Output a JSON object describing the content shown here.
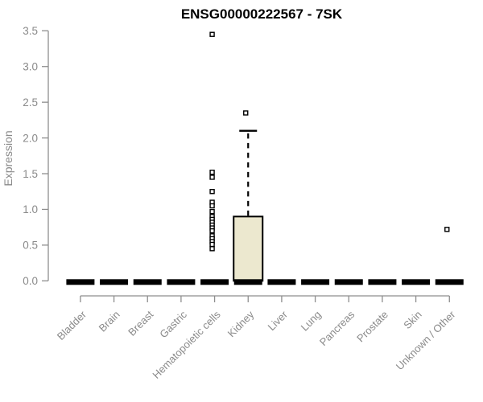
{
  "chart_data": {
    "type": "boxplot",
    "title": "ENSG00000222567 - 7SK",
    "ylabel": "Expression",
    "xlabel": "",
    "ylim": [
      0.0,
      3.5
    ],
    "yticks": [
      0.0,
      0.5,
      1.0,
      1.5,
      2.0,
      2.5,
      3.0,
      3.5
    ],
    "categories": [
      "Bladder",
      "Brain",
      "Breast",
      "Gastric",
      "Hematopoietic cells",
      "Kidney",
      "Liver",
      "Lung",
      "Pancreas",
      "Prostate",
      "Skin",
      "Unknown / Other"
    ],
    "series": [
      {
        "category": "Bladder",
        "min": 0,
        "q1": 0,
        "median": 0,
        "q3": 0,
        "max": 0,
        "outliers": []
      },
      {
        "category": "Brain",
        "min": 0,
        "q1": 0,
        "median": 0,
        "q3": 0,
        "max": 0,
        "outliers": []
      },
      {
        "category": "Breast",
        "min": 0,
        "q1": 0,
        "median": 0,
        "q3": 0,
        "max": 0,
        "outliers": []
      },
      {
        "category": "Gastric",
        "min": 0,
        "q1": 0,
        "median": 0,
        "q3": 0,
        "max": 0,
        "outliers": []
      },
      {
        "category": "Hematopoietic cells",
        "min": 0,
        "q1": 0,
        "median": 0,
        "q3": 0,
        "max": 0,
        "outliers": [
          3.45,
          1.52,
          1.45,
          1.25,
          1.1,
          1.05,
          0.97,
          0.9,
          0.86,
          0.82,
          0.78,
          0.74,
          0.7,
          0.63,
          0.59,
          0.55,
          0.51,
          0.45
        ]
      },
      {
        "category": "Kidney",
        "min": 0,
        "q1": 0,
        "median": 0,
        "q3": 0.9,
        "max": 2.1,
        "outliers": [
          2.35
        ]
      },
      {
        "category": "Liver",
        "min": 0,
        "q1": 0,
        "median": 0,
        "q3": 0,
        "max": 0,
        "outliers": []
      },
      {
        "category": "Lung",
        "min": 0,
        "q1": 0,
        "median": 0,
        "q3": 0,
        "max": 0,
        "outliers": []
      },
      {
        "category": "Pancreas",
        "min": 0,
        "q1": 0,
        "median": 0,
        "q3": 0,
        "max": 0,
        "outliers": []
      },
      {
        "category": "Prostate",
        "min": 0,
        "q1": 0,
        "median": 0,
        "q3": 0,
        "max": 0,
        "outliers": []
      },
      {
        "category": "Skin",
        "min": 0,
        "q1": 0,
        "median": 0,
        "q3": 0,
        "max": 0,
        "outliers": []
      },
      {
        "category": "Unknown / Other",
        "min": 0,
        "q1": 0,
        "median": 0,
        "q3": 0,
        "max": 0,
        "outliers": [
          0.72
        ]
      }
    ],
    "legend": null,
    "grid": false,
    "colors": {
      "box_fill": "#ece8cf",
      "box_stroke": "#000000",
      "flat_bar": "#000000",
      "outlier_fill": "#ffffff",
      "outlier_stroke": "#000000",
      "axis_line": "#8e8e8e",
      "axis_text": "#8a8a8a",
      "title_text": "#000000",
      "background": "#ffffff"
    }
  }
}
